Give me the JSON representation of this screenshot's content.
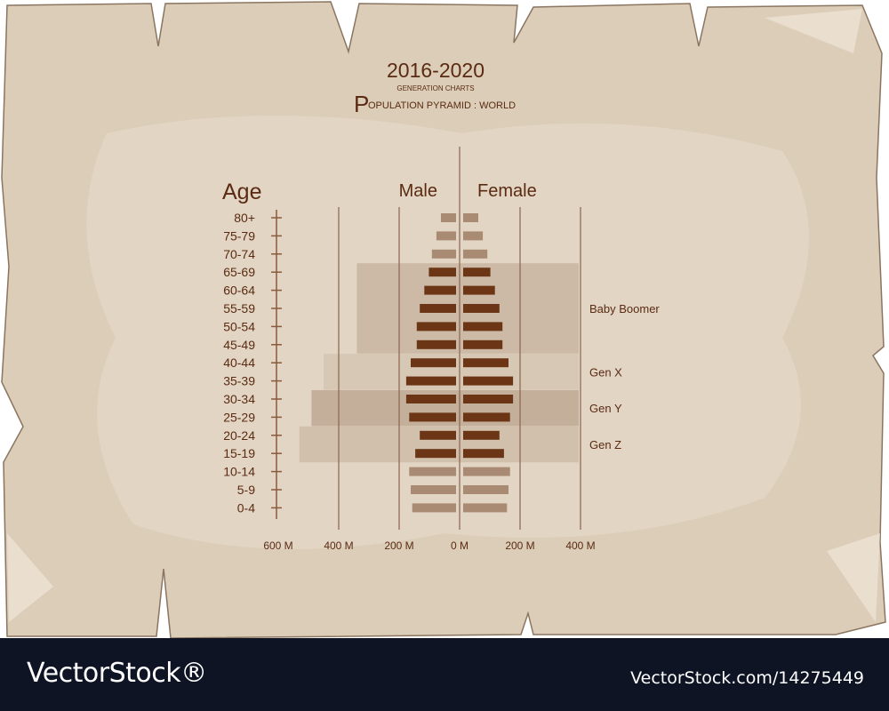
{
  "header": {
    "year_range": "2016-2020",
    "subtitle": "GENERATION CHARTS",
    "title_initial": "P",
    "title_rest": "OPULATION PYRAMID : WORLD"
  },
  "colors": {
    "paper": "#dccdb8",
    "bar_dark": "#6b3516",
    "bar_light": "#a98a73",
    "text": "#5a2b12"
  },
  "chart_data": {
    "type": "bar",
    "orientation": "horizontal",
    "layout": "population-pyramid",
    "axis_title": "Age",
    "male_label": "Male",
    "female_label": "Female",
    "categories": [
      "80+",
      "75-79",
      "70-74",
      "65-69",
      "60-64",
      "55-59",
      "50-54",
      "45-49",
      "40-44",
      "35-39",
      "30-34",
      "25-29",
      "20-24",
      "15-19",
      "10-14",
      "5-9",
      "0-4"
    ],
    "series": [
      {
        "name": "Male",
        "side": "left",
        "values": [
          50,
          65,
          80,
          90,
          105,
          120,
          130,
          130,
          150,
          165,
          165,
          155,
          120,
          135,
          155,
          150,
          145
        ]
      },
      {
        "name": "Female",
        "side": "right",
        "values": [
          50,
          65,
          80,
          90,
          105,
          120,
          130,
          130,
          150,
          165,
          165,
          155,
          120,
          135,
          155,
          150,
          145
        ]
      }
    ],
    "highlighted_categories": [
      "65-69",
      "60-64",
      "55-59",
      "50-54",
      "45-49",
      "40-44",
      "35-39",
      "30-34",
      "25-29",
      "20-24",
      "15-19"
    ],
    "x_ticks": [
      "600 M",
      "400 M",
      "200 M",
      "0 M",
      "200 M",
      "400 M"
    ],
    "x_tick_values": [
      -600,
      -400,
      -200,
      0,
      200,
      400
    ],
    "xlim": [
      -600,
      400
    ],
    "generations": [
      {
        "name": "Baby Boomer",
        "from": "65-69",
        "to": "45-49",
        "left_extent": -340
      },
      {
        "name": "Gen X",
        "from": "40-44",
        "to": "35-39",
        "left_extent": -450
      },
      {
        "name": "Gen Y",
        "from": "30-34",
        "to": "25-29",
        "left_extent": -490
      },
      {
        "name": "Gen Z",
        "from": "20-24",
        "to": "15-19",
        "left_extent": -530
      }
    ]
  },
  "watermark": {
    "left": "VectorStock®",
    "right": "VectorStock.com/14275449"
  }
}
